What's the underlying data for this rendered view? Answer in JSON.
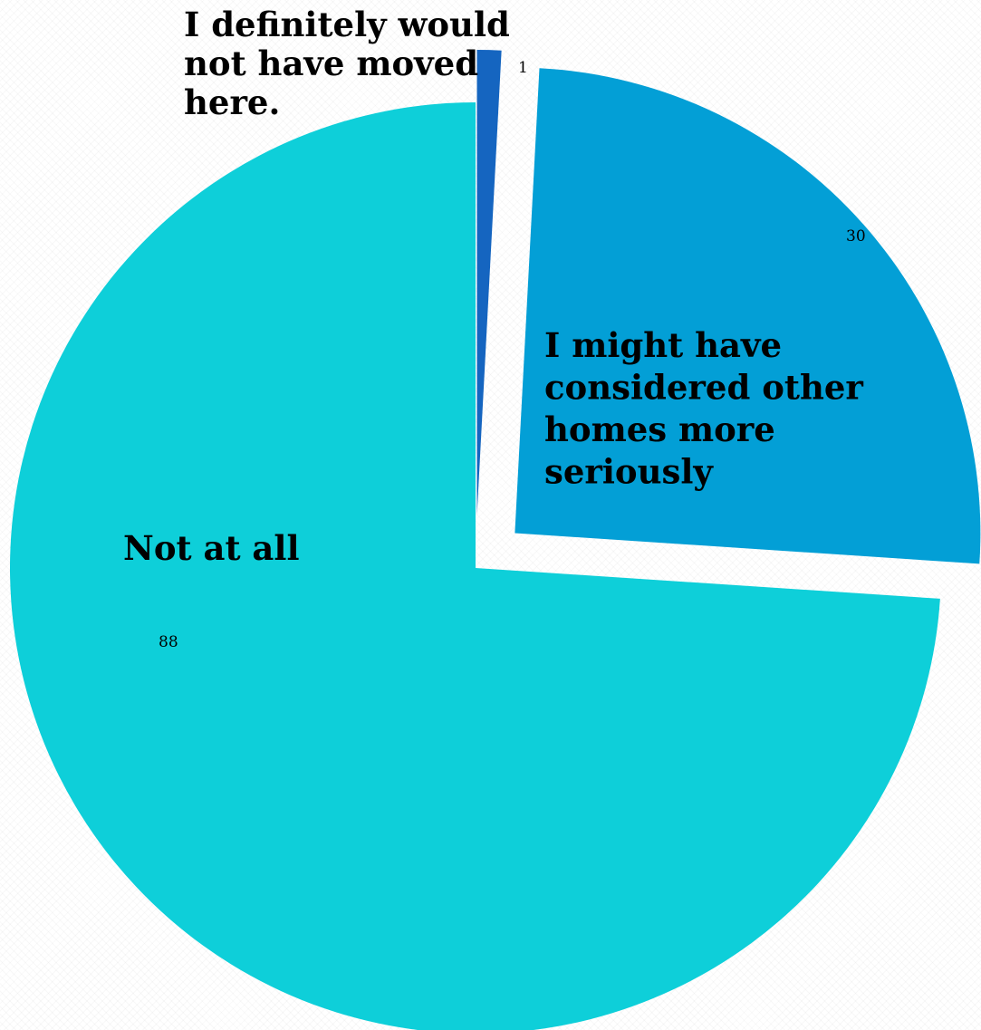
{
  "chart_data": {
    "type": "pie",
    "title": "",
    "slices": [
      {
        "label": "I definitely would not have moved here.",
        "label_lines": [
          "I definitely would",
          "not have moved",
          "here."
        ],
        "value": 1,
        "value_label": "1",
        "color": "#1565c0",
        "exploded": true
      },
      {
        "label": "I might have considered other homes more seriously",
        "label_lines": [
          "I might have",
          "considered other",
          "homes more",
          "seriously"
        ],
        "value": 30,
        "value_label": "30",
        "color": "#039fd6",
        "exploded": true
      },
      {
        "label": "Not at all",
        "label_lines": [
          "Not at all"
        ],
        "value": 88,
        "value_label": "88",
        "color": "#0ecfd9",
        "exploded": false
      }
    ],
    "legend": "none",
    "start_angle": "12 o'clock",
    "direction": "clockwise"
  }
}
